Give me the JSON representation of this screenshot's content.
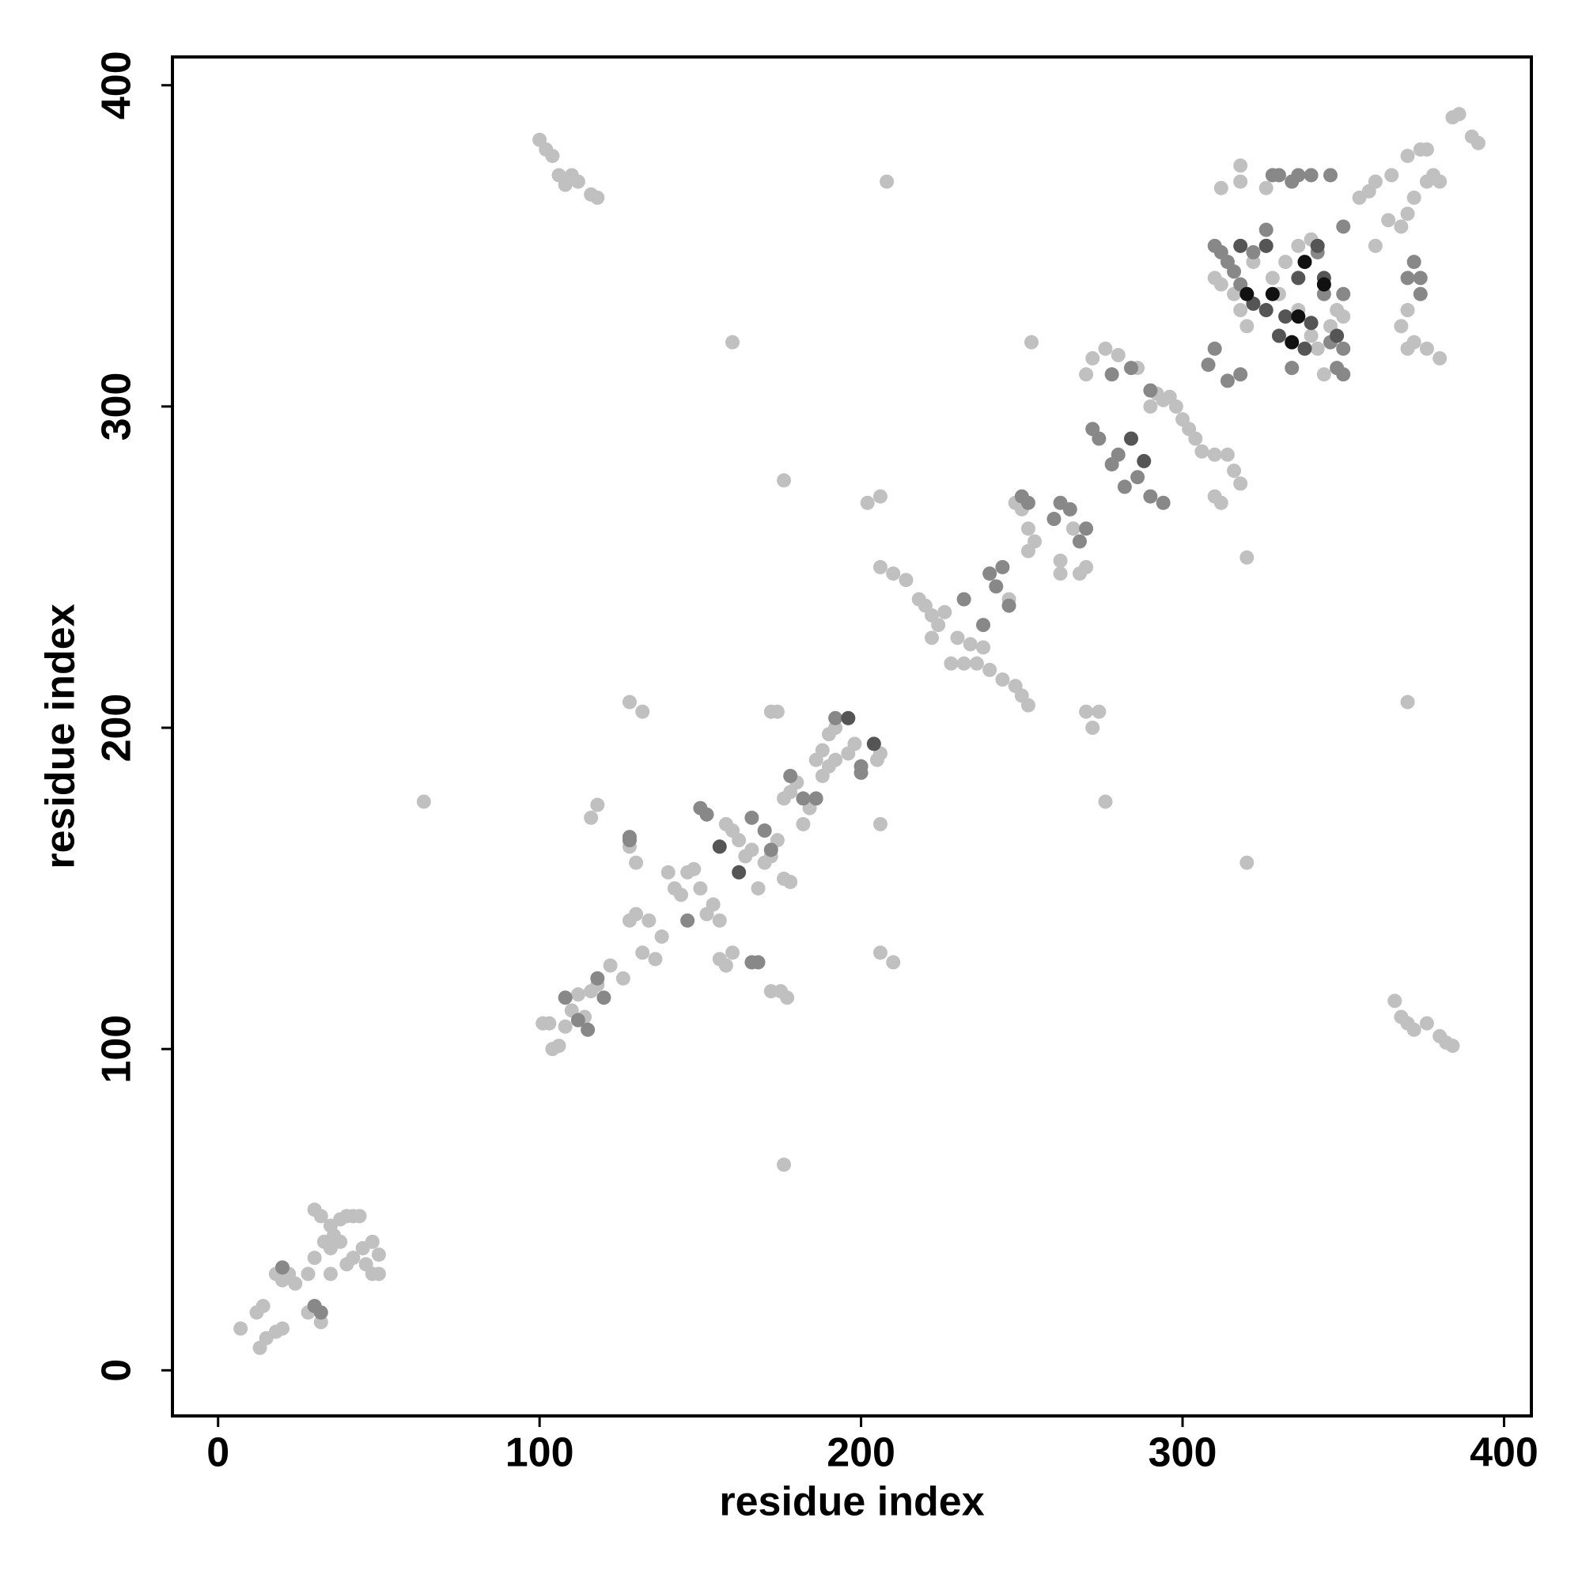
{
  "chart_data": {
    "type": "scatter",
    "x_label": "residue index",
    "y_label": "residue index",
    "xlim": [
      -14.2,
      408.5
    ],
    "ylim": [
      -14.2,
      408.8
    ],
    "xticks": [
      0,
      100,
      200,
      300,
      400
    ],
    "yticks": [
      0,
      100,
      200,
      300,
      400
    ],
    "grid": false,
    "series": [
      {
        "color": "#c0c0c0",
        "x": [
          7,
          12,
          14,
          18,
          20,
          22,
          24,
          13,
          15,
          18,
          20,
          28,
          30,
          32,
          30,
          32,
          35,
          38,
          40,
          42,
          44,
          36,
          38,
          35,
          33,
          30,
          28,
          35,
          40,
          42,
          45,
          48,
          50,
          50,
          48,
          46,
          101,
          103,
          104,
          106,
          108,
          110,
          112,
          114,
          116,
          118,
          122,
          126,
          128,
          130,
          132,
          134,
          136,
          138,
          140,
          142,
          144,
          146,
          148,
          150,
          152,
          154,
          156,
          158,
          160,
          162,
          164,
          166,
          168,
          170,
          172,
          174,
          176,
          178,
          180,
          182,
          184,
          186,
          188,
          190,
          192,
          188,
          190,
          192,
          196,
          198,
          176,
          178,
          172,
          175,
          177,
          116,
          118,
          156,
          158,
          160,
          128,
          130,
          128,
          132,
          172,
          174,
          206,
          206,
          210,
          206,
          205,
          64,
          176,
          160,
          176,
          208,
          276,
          320,
          320,
          370,
          253,
          206,
          210,
          214,
          218,
          220,
          222,
          224,
          222,
          226,
          228,
          232,
          236,
          240,
          244,
          248,
          250,
          252,
          230,
          234,
          238,
          246,
          248,
          250,
          252,
          254,
          252,
          262,
          262,
          268,
          270,
          272,
          274,
          270,
          202,
          206,
          266,
          270,
          272,
          276,
          280,
          286,
          290,
          292,
          294,
          296,
          298,
          300,
          302,
          304,
          306,
          310,
          312,
          314,
          316,
          318,
          310,
          310,
          312,
          316,
          318,
          320,
          322,
          326,
          328,
          330,
          332,
          336,
          340,
          342,
          344,
          346,
          348,
          350,
          318,
          318,
          326,
          336,
          340,
          312,
          360,
          358,
          365,
          364,
          368,
          370,
          372,
          376,
          378,
          370,
          374,
          376,
          380,
          384,
          386,
          390,
          392,
          366,
          368,
          370,
          372,
          376,
          380,
          382,
          384,
          100,
          102,
          104,
          106,
          108,
          110,
          112,
          116,
          118,
          360,
          368,
          370,
          372,
          376,
          380,
          370,
          355
        ],
        "values": [
          13,
          18,
          20,
          30,
          28,
          30,
          27,
          7,
          10,
          12,
          13,
          18,
          20,
          15,
          50,
          48,
          45,
          47,
          48,
          48,
          48,
          42,
          40,
          38,
          40,
          35,
          30,
          30,
          33,
          35,
          38,
          40,
          36,
          30,
          30,
          33,
          108,
          108,
          100,
          101,
          107,
          112,
          117,
          110,
          118,
          120,
          126,
          122,
          140,
          142,
          130,
          140,
          128,
          135,
          155,
          150,
          148,
          155,
          156,
          150,
          142,
          145,
          140,
          170,
          168,
          165,
          160,
          162,
          150,
          158,
          160,
          165,
          178,
          180,
          183,
          170,
          175,
          190,
          193,
          198,
          200,
          185,
          188,
          190,
          192,
          195,
          153,
          152,
          118,
          118,
          116,
          172,
          176,
          128,
          126,
          130,
          163,
          158,
          208,
          205,
          205,
          205,
          170,
          130,
          127,
          192,
          190,
          177,
          64,
          320,
          277,
          370,
          177,
          158,
          253,
          208,
          320,
          250,
          248,
          246,
          240,
          238,
          235,
          232,
          228,
          236,
          220,
          220,
          220,
          218,
          215,
          213,
          210,
          207,
          228,
          226,
          225,
          240,
          270,
          268,
          262,
          258,
          255,
          248,
          252,
          248,
          250,
          200,
          205,
          205,
          270,
          272,
          262,
          310,
          315,
          318,
          316,
          312,
          300,
          304,
          302,
          303,
          300,
          296,
          293,
          290,
          286,
          272,
          270,
          285,
          280,
          276,
          285,
          340,
          338,
          335,
          330,
          325,
          345,
          350,
          340,
          335,
          345,
          330,
          322,
          318,
          310,
          325,
          330,
          328,
          370,
          375,
          368,
          350,
          352,
          368,
          370,
          367,
          372,
          358,
          356,
          360,
          365,
          370,
          372,
          378,
          380,
          380,
          370,
          390,
          391,
          384,
          382,
          115,
          110,
          108,
          106,
          108,
          104,
          102,
          101,
          383,
          380,
          378,
          372,
          369,
          372,
          370,
          366,
          365,
          350,
          325,
          318,
          320,
          318,
          315,
          330,
          365
        ]
      },
      {
        "color": "#888888",
        "x": [
          20,
          30,
          32,
          108,
          112,
          115,
          118,
          120,
          128,
          128,
          146,
          150,
          152,
          166,
          170,
          172,
          178,
          182,
          186,
          192,
          200,
          200,
          166,
          168,
          232,
          238,
          240,
          244,
          250,
          252,
          260,
          262,
          265,
          268,
          270,
          272,
          274,
          278,
          280,
          282,
          286,
          290,
          294,
          278,
          284,
          290,
          242,
          246,
          310,
          312,
          314,
          316,
          318,
          322,
          326,
          328,
          330,
          334,
          336,
          340,
          346,
          350,
          350,
          350,
          348,
          346,
          344,
          342,
          310,
          308,
          314,
          318,
          334,
          370,
          374,
          372,
          374,
          350
        ],
        "values": [
          32,
          20,
          18,
          116,
          109,
          106,
          122,
          116,
          165,
          166,
          140,
          175,
          173,
          172,
          168,
          162,
          185,
          178,
          178,
          203,
          188,
          186,
          127,
          127,
          240,
          232,
          248,
          250,
          272,
          270,
          265,
          270,
          268,
          258,
          262,
          293,
          290,
          282,
          285,
          275,
          278,
          272,
          270,
          310,
          312,
          305,
          244,
          238,
          350,
          348,
          345,
          342,
          338,
          348,
          355,
          372,
          372,
          370,
          372,
          372,
          372,
          335,
          318,
          310,
          312,
          320,
          335,
          348,
          318,
          313,
          308,
          310,
          312,
          340,
          340,
          345,
          335,
          356
        ]
      },
      {
        "color": "#555555",
        "x": [
          156,
          162,
          196,
          204,
          284,
          288,
          322,
          326,
          330,
          332,
          336,
          338,
          340,
          344,
          348,
          342,
          318,
          326
        ],
        "values": [
          163,
          155,
          203,
          195,
          290,
          283,
          332,
          330,
          322,
          328,
          340,
          318,
          326,
          340,
          322,
          350,
          350,
          350
        ]
      },
      {
        "color": "#111111",
        "x": [
          328,
          334,
          336,
          338,
          344,
          320
        ],
        "values": [
          335,
          320,
          328,
          345,
          338,
          335
        ]
      }
    ]
  }
}
